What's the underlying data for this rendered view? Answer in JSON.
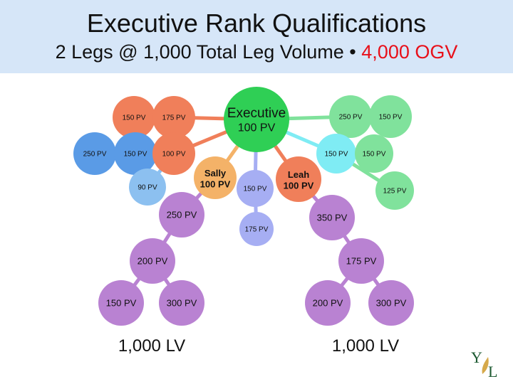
{
  "header": {
    "title": "Executive Rank Qualifications",
    "subtitle_main": "2 Legs @ 1,000 Total Leg Volume •",
    "subtitle_highlight": "4,000 OGV"
  },
  "colors": {
    "band": "#d6e6f8",
    "green": "#2fcf55",
    "mid_blue": "#5a9be6",
    "light_blue": "#8cc0f0",
    "salmon": "#f07f5a",
    "orange": "#f4b268",
    "purple": "#b982d2",
    "cyan": "#7fecf4",
    "mint": "#80e29c",
    "lavender": "#a6aef3",
    "highlight_red": "#e8101a"
  },
  "diagram": {
    "nodes": [
      {
        "id": "executive",
        "label": "Executive",
        "label2": "100 PV",
        "color": "green"
      },
      {
        "id": "n150a",
        "label": "150 PV",
        "color": "salmon"
      },
      {
        "id": "n175a",
        "label": "175 PV",
        "color": "salmon"
      },
      {
        "id": "n250a",
        "label": "250 PV",
        "color": "mid_blue"
      },
      {
        "id": "n150b",
        "label": "150 PV",
        "color": "mid_blue"
      },
      {
        "id": "n100a",
        "label": "100 PV",
        "color": "salmon"
      },
      {
        "id": "n90",
        "label": "90 PV",
        "color": "light_blue"
      },
      {
        "id": "sally",
        "label": "Sally",
        "label2": "100 PV",
        "color": "orange"
      },
      {
        "id": "n250b",
        "label": "250 PV",
        "color": "purple"
      },
      {
        "id": "n150c",
        "label": "150 PV",
        "color": "lavender"
      },
      {
        "id": "n175b",
        "label": "175 PV",
        "color": "lavender"
      },
      {
        "id": "leah",
        "label": "Leah",
        "label2": "100 PV",
        "color": "salmon"
      },
      {
        "id": "n250c",
        "label": "250 PV",
        "color": "mint"
      },
      {
        "id": "n150d",
        "label": "150 PV",
        "color": "mint"
      },
      {
        "id": "n150e",
        "label": "150 PV",
        "color": "cyan"
      },
      {
        "id": "n150f",
        "label": "150 PV",
        "color": "mint"
      },
      {
        "id": "n125",
        "label": "125 PV",
        "color": "mint"
      },
      {
        "id": "n350",
        "label": "350 PV",
        "color": "purple"
      },
      {
        "id": "n200a",
        "label": "200 PV",
        "color": "purple"
      },
      {
        "id": "n150g",
        "label": "150 PV",
        "color": "purple"
      },
      {
        "id": "n300a",
        "label": "300 PV",
        "color": "purple"
      },
      {
        "id": "n175c",
        "label": "175 PV",
        "color": "purple"
      },
      {
        "id": "n200b",
        "label": "200 PV",
        "color": "purple"
      },
      {
        "id": "n300b",
        "label": "300 PV",
        "color": "purple"
      }
    ],
    "edges": [
      {
        "from": "executive",
        "to": "n175a",
        "color": "salmon"
      },
      {
        "from": "n175a",
        "to": "n150a",
        "color": "salmon"
      },
      {
        "from": "executive",
        "to": "n100a",
        "color": "salmon"
      },
      {
        "from": "n100a",
        "to": "n150b",
        "color": "mid_blue"
      },
      {
        "from": "n150b",
        "to": "n250a",
        "color": "mid_blue"
      },
      {
        "from": "n100a",
        "to": "n90",
        "color": "light_blue"
      },
      {
        "from": "executive",
        "to": "sally",
        "color": "orange"
      },
      {
        "from": "sally",
        "to": "n250b",
        "color": "purple"
      },
      {
        "from": "executive",
        "to": "n150c",
        "color": "lavender"
      },
      {
        "from": "n150c",
        "to": "n175b",
        "color": "lavender"
      },
      {
        "from": "executive",
        "to": "leah",
        "color": "salmon"
      },
      {
        "from": "executive",
        "to": "n250c",
        "color": "mint"
      },
      {
        "from": "n250c",
        "to": "n150d",
        "color": "mint"
      },
      {
        "from": "executive",
        "to": "n150e",
        "color": "cyan"
      },
      {
        "from": "n150e",
        "to": "n150f",
        "color": "mint"
      },
      {
        "from": "n150e",
        "to": "n125",
        "color": "mint"
      },
      {
        "from": "leah",
        "to": "n350",
        "color": "purple"
      },
      {
        "from": "n250b",
        "to": "n200a",
        "color": "purple"
      },
      {
        "from": "n200a",
        "to": "n150g",
        "color": "purple"
      },
      {
        "from": "n200a",
        "to": "n300a",
        "color": "purple"
      },
      {
        "from": "n350",
        "to": "n175c",
        "color": "purple"
      },
      {
        "from": "n175c",
        "to": "n200b",
        "color": "purple"
      },
      {
        "from": "n175c",
        "to": "n300b",
        "color": "purple"
      }
    ]
  },
  "totals": {
    "left_lv": "1,000 LV",
    "right_lv": "1,000 LV"
  },
  "logo": {
    "letters": "YL"
  }
}
